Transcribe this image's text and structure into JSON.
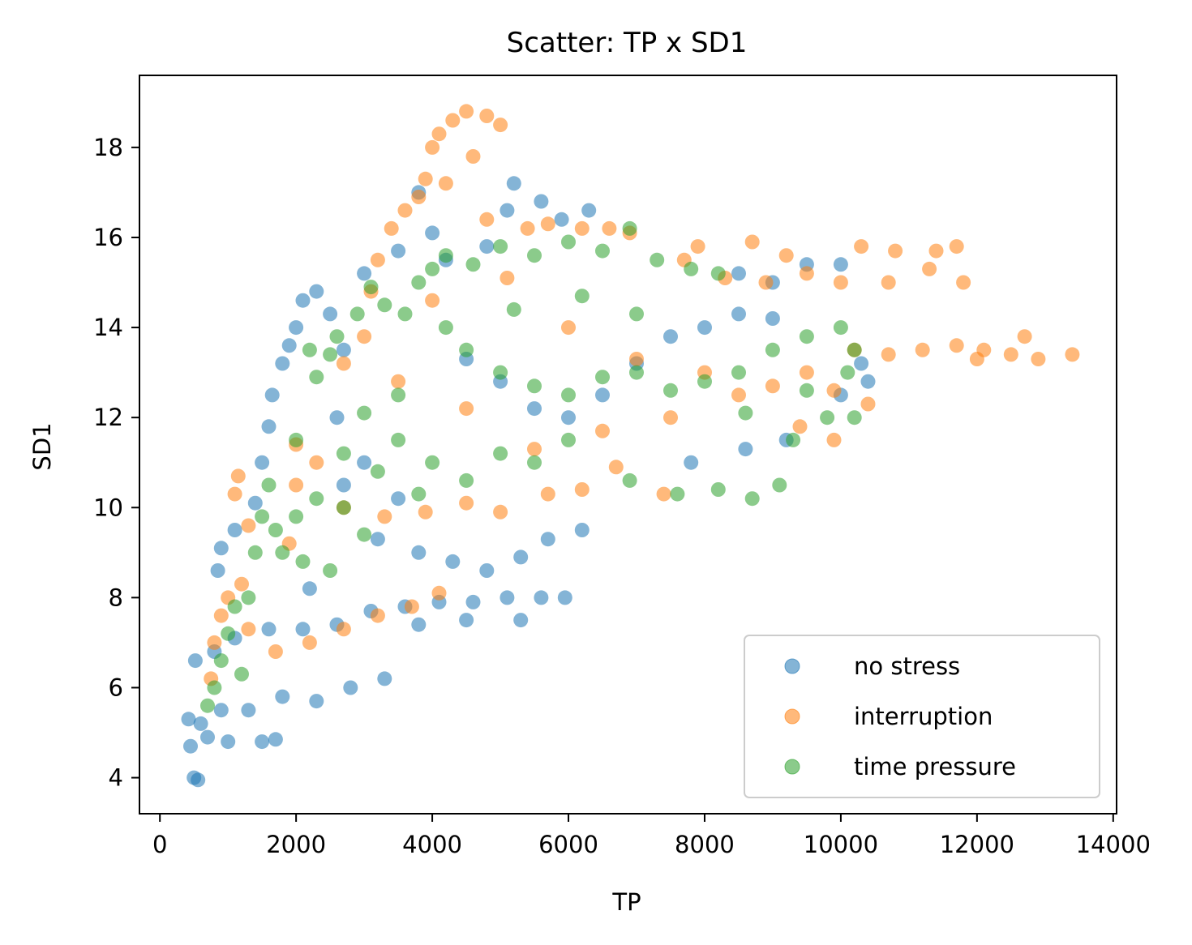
{
  "chart_data": {
    "type": "scatter",
    "title": "Scatter: TP x SD1",
    "xlabel": "TP",
    "ylabel": "SD1",
    "xlim": [
      -300,
      14050
    ],
    "ylim": [
      3.2,
      19.6
    ],
    "xticks": [
      0,
      2000,
      4000,
      6000,
      8000,
      10000,
      12000,
      14000
    ],
    "yticks": [
      4,
      6,
      8,
      10,
      12,
      14,
      16,
      18
    ],
    "grid": false,
    "legend_position": "lower right",
    "series": [
      {
        "name": "no stress",
        "color": "#1f77b4",
        "points": [
          [
            500,
            4.0
          ],
          [
            560,
            3.95
          ],
          [
            450,
            4.7
          ],
          [
            700,
            4.9
          ],
          [
            1000,
            4.8
          ],
          [
            1500,
            4.8
          ],
          [
            1700,
            4.85
          ],
          [
            420,
            5.3
          ],
          [
            600,
            5.2
          ],
          [
            900,
            5.5
          ],
          [
            1300,
            5.5
          ],
          [
            1800,
            5.8
          ],
          [
            2300,
            5.7
          ],
          [
            2800,
            6.0
          ],
          [
            3300,
            6.2
          ],
          [
            520,
            6.6
          ],
          [
            800,
            6.8
          ],
          [
            1100,
            7.1
          ],
          [
            1600,
            7.3
          ],
          [
            2100,
            7.3
          ],
          [
            2600,
            7.4
          ],
          [
            3100,
            7.7
          ],
          [
            3600,
            7.8
          ],
          [
            4100,
            7.9
          ],
          [
            4600,
            7.9
          ],
          [
            5100,
            8.0
          ],
          [
            5600,
            8.0
          ],
          [
            5950,
            8.0
          ],
          [
            3800,
            7.4
          ],
          [
            4500,
            7.5
          ],
          [
            5300,
            7.5
          ],
          [
            850,
            8.6
          ],
          [
            900,
            9.1
          ],
          [
            1100,
            9.5
          ],
          [
            1400,
            10.1
          ],
          [
            1500,
            11.0
          ],
          [
            1600,
            11.8
          ],
          [
            1650,
            12.5
          ],
          [
            1800,
            13.2
          ],
          [
            1900,
            13.6
          ],
          [
            2000,
            14.0
          ],
          [
            2100,
            14.6
          ],
          [
            2300,
            14.8
          ],
          [
            2500,
            14.3
          ],
          [
            2700,
            13.5
          ],
          [
            2700,
            10.5
          ],
          [
            3200,
            9.3
          ],
          [
            3800,
            9.0
          ],
          [
            4300,
            8.8
          ],
          [
            4800,
            8.6
          ],
          [
            5300,
            8.9
          ],
          [
            5700,
            9.3
          ],
          [
            6200,
            9.5
          ],
          [
            4200,
            15.5
          ],
          [
            4800,
            15.8
          ],
          [
            5100,
            16.6
          ],
          [
            5200,
            17.2
          ],
          [
            5600,
            16.8
          ],
          [
            5900,
            16.4
          ],
          [
            6300,
            16.6
          ],
          [
            3800,
            17.0
          ],
          [
            4000,
            16.1
          ],
          [
            3500,
            15.7
          ],
          [
            3000,
            15.2
          ],
          [
            4500,
            13.3
          ],
          [
            5000,
            12.8
          ],
          [
            5500,
            12.2
          ],
          [
            6000,
            12.0
          ],
          [
            6500,
            12.5
          ],
          [
            7000,
            13.2
          ],
          [
            7500,
            13.8
          ],
          [
            8000,
            14.0
          ],
          [
            8500,
            14.3
          ],
          [
            9000,
            14.2
          ],
          [
            8500,
            15.2
          ],
          [
            9000,
            15.0
          ],
          [
            9500,
            15.4
          ],
          [
            10000,
            15.4
          ],
          [
            10000,
            12.5
          ],
          [
            10400,
            12.8
          ],
          [
            10300,
            13.2
          ],
          [
            9200,
            11.5
          ],
          [
            8600,
            11.3
          ],
          [
            7800,
            11.0
          ],
          [
            3000,
            11.0
          ],
          [
            3500,
            10.2
          ],
          [
            2200,
            8.2
          ],
          [
            2600,
            12.0
          ]
        ]
      },
      {
        "name": "interruption",
        "color": "#ff7f0e",
        "points": [
          [
            750,
            6.2
          ],
          [
            800,
            7.0
          ],
          [
            900,
            7.6
          ],
          [
            1000,
            8.0
          ],
          [
            1200,
            8.3
          ],
          [
            1300,
            7.3
          ],
          [
            1700,
            6.8
          ],
          [
            2200,
            7.0
          ],
          [
            2700,
            7.3
          ],
          [
            3200,
            7.6
          ],
          [
            3700,
            7.8
          ],
          [
            4100,
            8.1
          ],
          [
            1100,
            10.3
          ],
          [
            1150,
            10.7
          ],
          [
            1300,
            9.6
          ],
          [
            1900,
            9.2
          ],
          [
            2000,
            10.5
          ],
          [
            2000,
            11.4
          ],
          [
            2700,
            10.0
          ],
          [
            3300,
            9.8
          ],
          [
            3900,
            9.9
          ],
          [
            4500,
            10.1
          ],
          [
            5000,
            9.9
          ],
          [
            5700,
            10.3
          ],
          [
            6200,
            10.4
          ],
          [
            6700,
            10.9
          ],
          [
            7400,
            10.3
          ],
          [
            3000,
            13.8
          ],
          [
            3100,
            14.8
          ],
          [
            3200,
            15.5
          ],
          [
            3400,
            16.2
          ],
          [
            3600,
            16.6
          ],
          [
            3800,
            16.9
          ],
          [
            3900,
            17.3
          ],
          [
            4000,
            18.0
          ],
          [
            4100,
            18.3
          ],
          [
            4300,
            18.6
          ],
          [
            4500,
            18.8
          ],
          [
            4800,
            18.7
          ],
          [
            5000,
            18.5
          ],
          [
            4200,
            17.2
          ],
          [
            4600,
            17.8
          ],
          [
            4800,
            16.4
          ],
          [
            5400,
            16.2
          ],
          [
            5700,
            16.3
          ],
          [
            6200,
            16.2
          ],
          [
            6600,
            16.2
          ],
          [
            6900,
            16.1
          ],
          [
            7700,
            15.5
          ],
          [
            8300,
            15.1
          ],
          [
            8900,
            15.0
          ],
          [
            9500,
            15.2
          ],
          [
            10000,
            15.0
          ],
          [
            10700,
            15.0
          ],
          [
            11300,
            15.3
          ],
          [
            11800,
            15.0
          ],
          [
            10300,
            15.8
          ],
          [
            10800,
            15.7
          ],
          [
            11400,
            15.7
          ],
          [
            11700,
            15.8
          ],
          [
            7900,
            15.8
          ],
          [
            8700,
            15.9
          ],
          [
            9200,
            15.6
          ],
          [
            10200,
            13.5
          ],
          [
            10700,
            13.4
          ],
          [
            11200,
            13.5
          ],
          [
            11700,
            13.6
          ],
          [
            12100,
            13.5
          ],
          [
            12500,
            13.4
          ],
          [
            12900,
            13.3
          ],
          [
            13400,
            13.4
          ],
          [
            12700,
            13.8
          ],
          [
            12000,
            13.3
          ],
          [
            9000,
            12.7
          ],
          [
            9500,
            13.0
          ],
          [
            9900,
            12.6
          ],
          [
            10400,
            12.3
          ],
          [
            8500,
            12.5
          ],
          [
            7500,
            12.0
          ],
          [
            6500,
            11.7
          ],
          [
            5500,
            11.3
          ],
          [
            4500,
            12.2
          ],
          [
            3500,
            12.8
          ],
          [
            2700,
            13.2
          ],
          [
            2300,
            11.0
          ],
          [
            4000,
            14.6
          ],
          [
            5100,
            15.1
          ],
          [
            6000,
            14.0
          ],
          [
            7000,
            13.3
          ],
          [
            8000,
            13.0
          ],
          [
            9400,
            11.8
          ],
          [
            9900,
            11.5
          ]
        ]
      },
      {
        "name": "time pressure",
        "color": "#2ca02c",
        "points": [
          [
            700,
            5.6
          ],
          [
            800,
            6.0
          ],
          [
            900,
            6.6
          ],
          [
            1000,
            7.2
          ],
          [
            1100,
            7.8
          ],
          [
            1200,
            6.3
          ],
          [
            1300,
            8.0
          ],
          [
            1400,
            9.0
          ],
          [
            1500,
            9.8
          ],
          [
            1700,
            9.5
          ],
          [
            2000,
            9.8
          ],
          [
            2300,
            10.2
          ],
          [
            2700,
            10.0
          ],
          [
            3000,
            9.4
          ],
          [
            2100,
            8.8
          ],
          [
            2500,
            8.6
          ],
          [
            2200,
            13.5
          ],
          [
            2300,
            12.9
          ],
          [
            2500,
            13.4
          ],
          [
            2600,
            13.8
          ],
          [
            2900,
            14.3
          ],
          [
            3100,
            14.9
          ],
          [
            3300,
            14.5
          ],
          [
            3600,
            14.3
          ],
          [
            3800,
            15.0
          ],
          [
            4000,
            15.3
          ],
          [
            4200,
            15.6
          ],
          [
            4600,
            15.4
          ],
          [
            5000,
            15.8
          ],
          [
            5500,
            15.6
          ],
          [
            6000,
            15.9
          ],
          [
            6500,
            15.7
          ],
          [
            6900,
            16.2
          ],
          [
            7300,
            15.5
          ],
          [
            7800,
            15.3
          ],
          [
            8200,
            15.2
          ],
          [
            4500,
            13.5
          ],
          [
            5000,
            13.0
          ],
          [
            5500,
            12.7
          ],
          [
            6000,
            12.5
          ],
          [
            6500,
            12.9
          ],
          [
            7000,
            13.0
          ],
          [
            7500,
            12.6
          ],
          [
            8000,
            12.8
          ],
          [
            8500,
            13.0
          ],
          [
            9000,
            13.5
          ],
          [
            9500,
            13.8
          ],
          [
            10000,
            14.0
          ],
          [
            10200,
            13.5
          ],
          [
            10100,
            13.0
          ],
          [
            9800,
            12.0
          ],
          [
            10200,
            12.0
          ],
          [
            9300,
            11.5
          ],
          [
            9100,
            10.5
          ],
          [
            8700,
            10.2
          ],
          [
            8200,
            10.4
          ],
          [
            7600,
            10.3
          ],
          [
            6900,
            10.6
          ],
          [
            3500,
            11.5
          ],
          [
            4000,
            11.0
          ],
          [
            4500,
            10.6
          ],
          [
            5000,
            11.2
          ],
          [
            5500,
            11.0
          ],
          [
            6000,
            11.5
          ],
          [
            3000,
            12.1
          ],
          [
            3500,
            12.5
          ],
          [
            2700,
            11.2
          ],
          [
            2000,
            11.5
          ],
          [
            4200,
            14.0
          ],
          [
            5200,
            14.4
          ],
          [
            6200,
            14.7
          ],
          [
            7000,
            14.3
          ],
          [
            8600,
            12.1
          ],
          [
            9500,
            12.6
          ],
          [
            3800,
            10.3
          ],
          [
            3200,
            10.8
          ],
          [
            1600,
            10.5
          ],
          [
            1800,
            9.0
          ]
        ]
      }
    ]
  }
}
